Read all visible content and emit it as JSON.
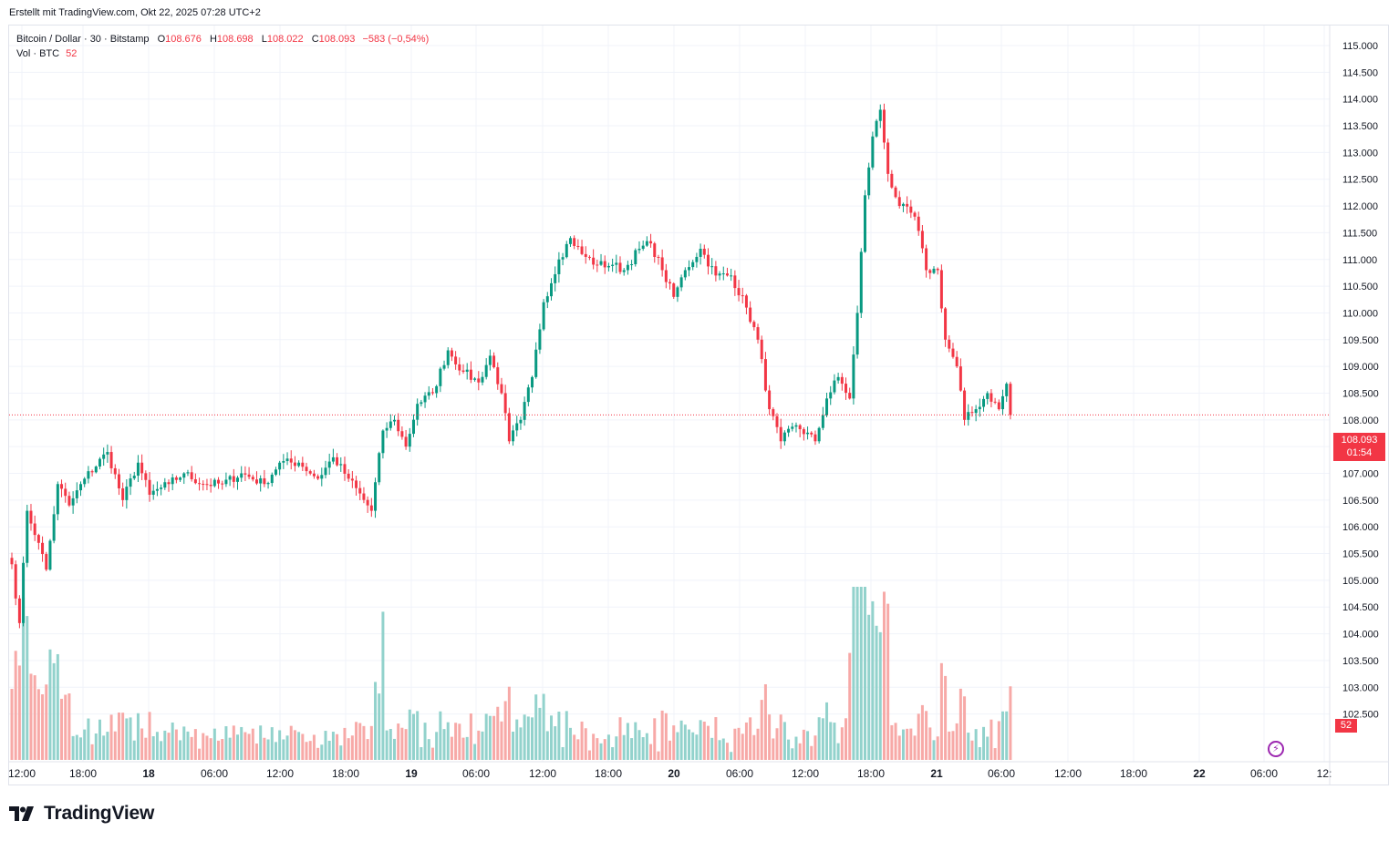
{
  "header": {
    "created_by": "Erstellt mit TradingView.com, Okt 22, 2025 07:28 UTC+2"
  },
  "legend": {
    "symbol": "Bitcoin / Dollar · 30 · Bitstamp",
    "open_label": "O",
    "open": "108.676",
    "high_label": "H",
    "high": "108.698",
    "low_label": "L",
    "low": "108.022",
    "close_label": "C",
    "close": "108.093",
    "change": "−583 (−0,54%)",
    "vol_label": "Vol · BTC",
    "vol_value": "52"
  },
  "price_tag": {
    "price": "108.093",
    "countdown": "01:54"
  },
  "volume_tag": {
    "value": "52"
  },
  "footer": {
    "brand": "TradingView"
  },
  "colors": {
    "up": "#089981",
    "down": "#f23645",
    "up_volume": "#92d2cc",
    "down_volume": "#f7a9a7",
    "grid": "#f0f3fa",
    "text": "#131722",
    "last_price_line": "#f23645"
  },
  "chart_data": {
    "type": "candlestick",
    "symbol": "Bitcoin / Dollar",
    "interval": "30",
    "exchange": "Bitstamp",
    "y_axis": {
      "ticks": [
        "115.000",
        "114.500",
        "114.000",
        "113.500",
        "113.000",
        "112.500",
        "112.000",
        "111.500",
        "111.000",
        "110.500",
        "110.000",
        "109.500",
        "109.000",
        "108.500",
        "108.000",
        "107.500",
        "107.000",
        "106.500",
        "106.000",
        "105.500",
        "105.000",
        "104.500",
        "104.000",
        "103.500",
        "103.000",
        "102.500"
      ],
      "ylim": [
        102500,
        115000
      ]
    },
    "x_axis": {
      "ticks": [
        "12:00",
        "18:00",
        "18",
        "06:00",
        "12:00",
        "18:00",
        "19",
        "06:00",
        "12:00",
        "18:00",
        "20",
        "06:00",
        "12:00",
        "18:00",
        "21",
        "06:00",
        "12:00",
        "18:00",
        "22",
        "06:00",
        "12:"
      ]
    },
    "last_price": 108093,
    "anchors": [
      {
        "t": 0,
        "p": 105300
      },
      {
        "t": 2,
        "p": 104200
      },
      {
        "t": 4,
        "p": 106300
      },
      {
        "t": 7,
        "p": 105700
      },
      {
        "t": 9,
        "p": 105200
      },
      {
        "t": 12,
        "p": 106800
      },
      {
        "t": 15,
        "p": 106400
      },
      {
        "t": 19,
        "p": 106900
      },
      {
        "t": 25,
        "p": 107400
      },
      {
        "t": 29,
        "p": 106500
      },
      {
        "t": 33,
        "p": 107200
      },
      {
        "t": 36,
        "p": 106600
      },
      {
        "t": 41,
        "p": 106800
      },
      {
        "t": 45,
        "p": 107000
      },
      {
        "t": 50,
        "p": 106800
      },
      {
        "t": 55,
        "p": 106800
      },
      {
        "t": 60,
        "p": 107000
      },
      {
        "t": 66,
        "p": 106800
      },
      {
        "t": 70,
        "p": 107200
      },
      {
        "t": 75,
        "p": 107200
      },
      {
        "t": 80,
        "p": 106900
      },
      {
        "t": 84,
        "p": 107300
      },
      {
        "t": 88,
        "p": 106900
      },
      {
        "t": 94,
        "p": 106300
      },
      {
        "t": 97,
        "p": 107800
      },
      {
        "t": 100,
        "p": 108000
      },
      {
        "t": 103,
        "p": 107500
      },
      {
        "t": 106,
        "p": 108300
      },
      {
        "t": 110,
        "p": 108500
      },
      {
        "t": 114,
        "p": 109300
      },
      {
        "t": 118,
        "p": 108900
      },
      {
        "t": 122,
        "p": 108700
      },
      {
        "t": 125,
        "p": 109200
      },
      {
        "t": 128,
        "p": 108500
      },
      {
        "t": 130,
        "p": 107600
      },
      {
        "t": 133,
        "p": 108000
      },
      {
        "t": 136,
        "p": 108800
      },
      {
        "t": 139,
        "p": 110200
      },
      {
        "t": 143,
        "p": 111000
      },
      {
        "t": 146,
        "p": 111400
      },
      {
        "t": 149,
        "p": 111100
      },
      {
        "t": 153,
        "p": 110900
      },
      {
        "t": 157,
        "p": 110900
      },
      {
        "t": 160,
        "p": 110800
      },
      {
        "t": 164,
        "p": 111200
      },
      {
        "t": 167,
        "p": 111300
      },
      {
        "t": 170,
        "p": 110800
      },
      {
        "t": 173,
        "p": 110300
      },
      {
        "t": 176,
        "p": 110800
      },
      {
        "t": 180,
        "p": 111200
      },
      {
        "t": 184,
        "p": 110700
      },
      {
        "t": 188,
        "p": 110700
      },
      {
        "t": 192,
        "p": 110100
      },
      {
        "t": 195,
        "p": 109500
      },
      {
        "t": 198,
        "p": 108200
      },
      {
        "t": 201,
        "p": 107600
      },
      {
        "t": 205,
        "p": 107900
      },
      {
        "t": 210,
        "p": 107600
      },
      {
        "t": 213,
        "p": 108400
      },
      {
        "t": 216,
        "p": 108800
      },
      {
        "t": 219,
        "p": 108400
      },
      {
        "t": 221,
        "p": 110000
      },
      {
        "t": 223,
        "p": 112200
      },
      {
        "t": 225,
        "p": 113300
      },
      {
        "t": 227,
        "p": 113800
      },
      {
        "t": 229,
        "p": 112600
      },
      {
        "t": 232,
        "p": 112000
      },
      {
        "t": 236,
        "p": 111800
      },
      {
        "t": 239,
        "p": 110800
      },
      {
        "t": 242,
        "p": 110800
      },
      {
        "t": 244,
        "p": 109500
      },
      {
        "t": 247,
        "p": 109000
      },
      {
        "t": 249,
        "p": 108000
      },
      {
        "t": 252,
        "p": 108200
      },
      {
        "t": 255,
        "p": 108500
      },
      {
        "t": 258,
        "p": 108200
      },
      {
        "t": 260,
        "p": 108676
      },
      {
        "t": 261,
        "p": 108093
      }
    ]
  }
}
